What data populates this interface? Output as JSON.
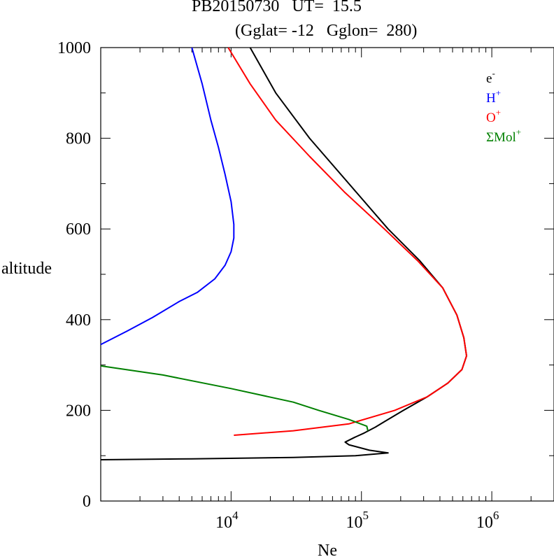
{
  "header": {
    "line1": "PB20150730   UT=  15.5",
    "line2": "(Gglat= -12   Gglon=  280)"
  },
  "chart_data": {
    "type": "line",
    "xlabel": "Ne",
    "ylabel": "altitude",
    "xscale": "log",
    "xlim": [
      1000,
      3000000
    ],
    "ylim": [
      0,
      1000
    ],
    "xticks_major": [
      {
        "value": 10000,
        "base": "10",
        "exp": "4"
      },
      {
        "value": 100000,
        "base": "10",
        "exp": "5"
      },
      {
        "value": 1000000,
        "base": "10",
        "exp": "6"
      }
    ],
    "yticks": [
      0,
      200,
      400,
      600,
      800,
      1000
    ],
    "legend": {
      "position": "top-right",
      "entries": [
        {
          "base": "e",
          "sup": "-",
          "color": "#000000"
        },
        {
          "base": "H",
          "sup": "+",
          "color": "#0000ff"
        },
        {
          "base": "O",
          "sup": "+",
          "color": "#ff0000"
        },
        {
          "base": "ΣMol",
          "sup": "+",
          "color": "#008000"
        }
      ]
    },
    "series": [
      {
        "id": "e",
        "color": "#000000",
        "points": [
          [
            1000,
            91
          ],
          [
            5000,
            93
          ],
          [
            30000,
            96
          ],
          [
            90000,
            100
          ],
          [
            160000,
            106
          ],
          [
            115000,
            112
          ],
          [
            80000,
            124
          ],
          [
            75000,
            130
          ],
          [
            88000,
            140
          ],
          [
            105000,
            150
          ],
          [
            128000,
            163
          ],
          [
            150000,
            175
          ],
          [
            210000,
            200
          ],
          [
            320000,
            230
          ],
          [
            460000,
            260
          ],
          [
            590000,
            290
          ],
          [
            640000,
            320
          ],
          [
            610000,
            360
          ],
          [
            540000,
            410
          ],
          [
            420000,
            470
          ],
          [
            280000,
            530
          ],
          [
            160000,
            600
          ],
          [
            80000,
            700
          ],
          [
            40000,
            800
          ],
          [
            22000,
            900
          ],
          [
            14000,
            1000
          ]
        ]
      },
      {
        "id": "H+",
        "color": "#0000ff",
        "points": [
          [
            1000,
            345
          ],
          [
            1600,
            375
          ],
          [
            2500,
            405
          ],
          [
            4000,
            440
          ],
          [
            5500,
            460
          ],
          [
            7500,
            490
          ],
          [
            9000,
            520
          ],
          [
            10000,
            550
          ],
          [
            10500,
            580
          ],
          [
            10500,
            610
          ],
          [
            10000,
            660
          ],
          [
            9000,
            720
          ],
          [
            8000,
            780
          ],
          [
            7000,
            840
          ],
          [
            6000,
            920
          ],
          [
            5000,
            1000
          ]
        ]
      },
      {
        "id": "O+",
        "color": "#ff0000",
        "points": [
          [
            10500,
            145
          ],
          [
            30000,
            155
          ],
          [
            80000,
            170
          ],
          [
            180000,
            200
          ],
          [
            320000,
            230
          ],
          [
            460000,
            260
          ],
          [
            590000,
            290
          ],
          [
            640000,
            320
          ],
          [
            610000,
            360
          ],
          [
            540000,
            410
          ],
          [
            420000,
            470
          ],
          [
            270000,
            530
          ],
          [
            150000,
            600
          ],
          [
            75000,
            680
          ],
          [
            40000,
            760
          ],
          [
            22000,
            840
          ],
          [
            14000,
            920
          ],
          [
            9500,
            1000
          ]
        ]
      },
      {
        "id": "SumMol+",
        "color": "#008000",
        "points": [
          [
            1000,
            298
          ],
          [
            3000,
            278
          ],
          [
            10000,
            248
          ],
          [
            30000,
            218
          ],
          [
            47000,
            200
          ],
          [
            80000,
            180
          ],
          [
            110000,
            165
          ],
          [
            112000,
            155
          ]
        ]
      }
    ]
  }
}
